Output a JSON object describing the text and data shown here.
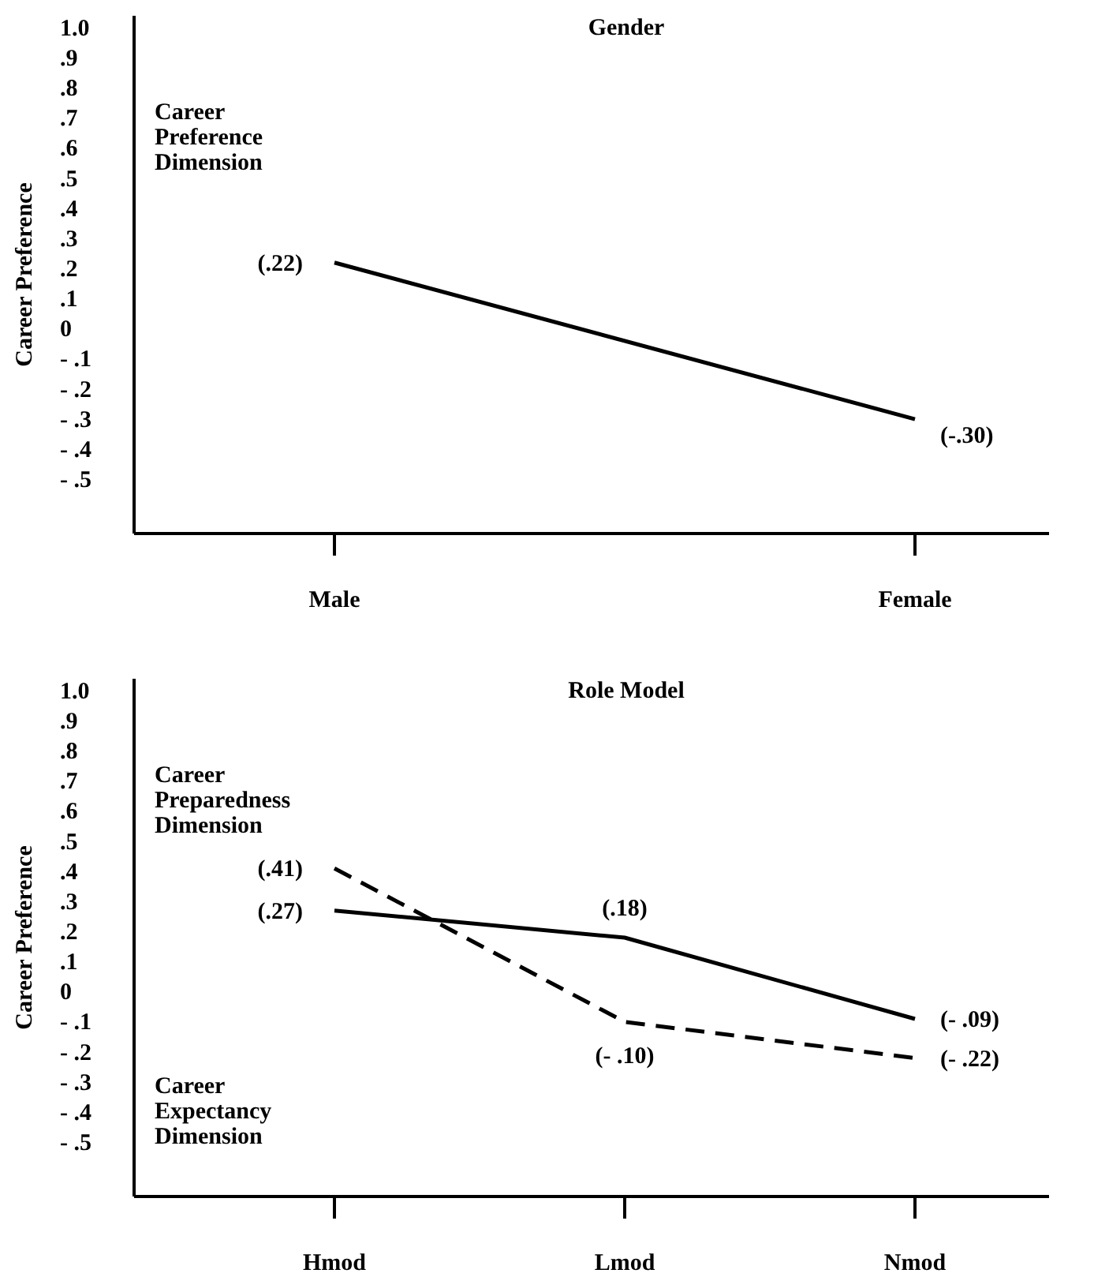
{
  "chart_data": [
    {
      "type": "line",
      "title": "Gender",
      "ylabel": "Career Preference",
      "categories": [
        "Male",
        "Female"
      ],
      "series": [
        {
          "color": "#000000",
          "line_style": "solid",
          "values": [
            0.22,
            -0.3
          ],
          "value_labels": [
            "(.22)",
            "(-.30)"
          ]
        }
      ],
      "ylim": [
        -0.68,
        1.04
      ],
      "yticks": [
        {
          "value": 1.0,
          "label": "1.0"
        },
        {
          "value": 0.9,
          "label": ".9"
        },
        {
          "value": 0.8,
          "label": ".8"
        },
        {
          "value": 0.7,
          "label": ".7"
        },
        {
          "value": 0.6,
          "label": ".6"
        },
        {
          "value": 0.5,
          "label": ".5"
        },
        {
          "value": 0.4,
          "label": ".4"
        },
        {
          "value": 0.3,
          "label": ".3"
        },
        {
          "value": 0.2,
          "label": ".2"
        },
        {
          "value": 0.1,
          "label": ".1"
        },
        {
          "value": 0,
          "label": "0"
        },
        {
          "value": -0.1,
          "label": "- .1"
        },
        {
          "value": -0.2,
          "label": "- .2"
        },
        {
          "value": -0.3,
          "label": "- .3"
        },
        {
          "value": -0.4,
          "label": "- .4"
        },
        {
          "value": -0.5,
          "label": "- .5"
        }
      ],
      "annotations": [
        "Career Preference Dimension"
      ],
      "marker": "none",
      "grid": false
    },
    {
      "type": "line",
      "title": "Role Model",
      "ylabel": "Career Preference",
      "categories": [
        "Hmod",
        "Lmod",
        "Nmod"
      ],
      "series": [
        {
          "color": "#000000",
          "line_style": "solid",
          "values": [
            0.27,
            0.18,
            -0.09
          ],
          "value_labels": [
            "(.27)",
            "(.18)",
            "(- .09)"
          ]
        },
        {
          "color": "#000000",
          "line_style": "dashed",
          "values": [
            0.41,
            -0.1,
            -0.22
          ],
          "value_labels": [
            "(.41)",
            "(- .10)",
            "(- .22)"
          ]
        }
      ],
      "ylim": [
        -0.68,
        1.04
      ],
      "yticks": [
        {
          "value": 1.0,
          "label": "1.0"
        },
        {
          "value": 0.9,
          "label": ".9"
        },
        {
          "value": 0.8,
          "label": ".8"
        },
        {
          "value": 0.7,
          "label": ".7"
        },
        {
          "value": 0.6,
          "label": ".6"
        },
        {
          "value": 0.5,
          "label": ".5"
        },
        {
          "value": 0.4,
          "label": ".4"
        },
        {
          "value": 0.3,
          "label": ".3"
        },
        {
          "value": 0.2,
          "label": ".2"
        },
        {
          "value": 0.1,
          "label": ".1"
        },
        {
          "value": 0,
          "label": "0"
        },
        {
          "value": -0.1,
          "label": "- .1"
        },
        {
          "value": -0.2,
          "label": "- .2"
        },
        {
          "value": -0.3,
          "label": "- .3"
        },
        {
          "value": -0.4,
          "label": "- .4"
        },
        {
          "value": -0.5,
          "label": "- .5"
        }
      ],
      "annotations": [
        "Career Preparedness Dimension",
        "Career Expectancy Dimension"
      ],
      "marker": "none",
      "grid": false
    }
  ]
}
